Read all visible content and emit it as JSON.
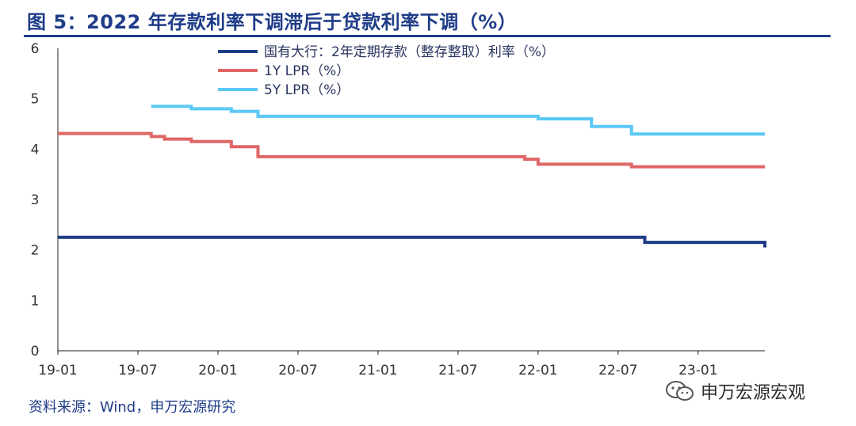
{
  "title": "图 5：2022 年存款利率下调滞后于贷款利率下调（%）",
  "source": "资料来源：Wind，申万宏源研究",
  "watermark": "申万宏源宏观",
  "chart_data": {
    "type": "line",
    "title": "图 5：2022 年存款利率下调滞后于贷款利率下调（%）",
    "xlabel": "",
    "ylabel": "",
    "ylim": [
      0,
      6
    ],
    "yticks": [
      "0",
      "1",
      "2",
      "3",
      "4",
      "5",
      "6"
    ],
    "xticks": [
      "19-01",
      "19-07",
      "20-01",
      "20-07",
      "21-01",
      "21-07",
      "22-01",
      "22-07",
      "23-01"
    ],
    "xlim": [
      "2019-01",
      "2023-06"
    ],
    "grid": false,
    "legend": "top-center",
    "step": true,
    "series": [
      {
        "name": "国有大行：2年定期存款（整存整取）利率（%）",
        "color": "#1f3c88",
        "points": [
          [
            "2019-01",
            2.25
          ],
          [
            "2022-09",
            2.25
          ],
          [
            "2022-09",
            2.15
          ],
          [
            "2023-06",
            2.15
          ],
          [
            "2023-06",
            2.05
          ]
        ]
      },
      {
        "name": "1Y LPR（%）",
        "color": "#e06666",
        "points": [
          [
            "2019-01",
            4.31
          ],
          [
            "2019-08",
            4.31
          ],
          [
            "2019-08",
            4.25
          ],
          [
            "2019-09",
            4.25
          ],
          [
            "2019-09",
            4.2
          ],
          [
            "2019-11",
            4.2
          ],
          [
            "2019-11",
            4.15
          ],
          [
            "2020-02",
            4.15
          ],
          [
            "2020-02",
            4.05
          ],
          [
            "2020-04",
            4.05
          ],
          [
            "2020-04",
            3.85
          ],
          [
            "2021-12",
            3.85
          ],
          [
            "2021-12",
            3.8
          ],
          [
            "2022-01",
            3.8
          ],
          [
            "2022-01",
            3.7
          ],
          [
            "2022-08",
            3.7
          ],
          [
            "2022-08",
            3.65
          ],
          [
            "2023-06",
            3.65
          ]
        ]
      },
      {
        "name": "5Y LPR（%）",
        "color": "#5bc8f5",
        "points": [
          [
            "2019-08",
            4.85
          ],
          [
            "2019-11",
            4.85
          ],
          [
            "2019-11",
            4.8
          ],
          [
            "2020-02",
            4.8
          ],
          [
            "2020-02",
            4.75
          ],
          [
            "2020-04",
            4.75
          ],
          [
            "2020-04",
            4.65
          ],
          [
            "2022-01",
            4.65
          ],
          [
            "2022-01",
            4.6
          ],
          [
            "2022-05",
            4.6
          ],
          [
            "2022-05",
            4.45
          ],
          [
            "2022-08",
            4.45
          ],
          [
            "2022-08",
            4.3
          ],
          [
            "2023-06",
            4.3
          ]
        ]
      }
    ]
  }
}
